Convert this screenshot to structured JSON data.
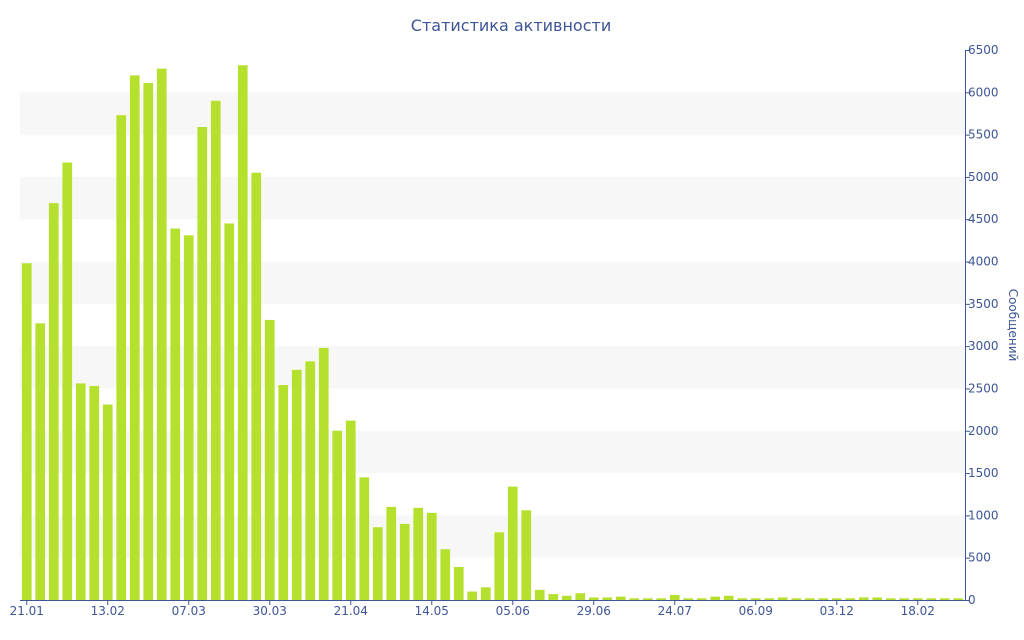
{
  "colors": {
    "bar": "#b5e12e",
    "text": "#3e5596",
    "axis": "#3e5596",
    "band": "#f7f7f7",
    "background": "#ffffff"
  },
  "chart_data": {
    "type": "bar",
    "title": "Статистика активности",
    "xlabel": "",
    "ylabel": "Сообщений",
    "y_axis_side": "right",
    "grid": "alternating-bands",
    "legend": "none",
    "ylim": [
      0,
      6500
    ],
    "yticks": [
      0,
      500,
      1000,
      1500,
      2000,
      2500,
      3000,
      3500,
      4000,
      4500,
      5000,
      5500,
      6000,
      6500
    ],
    "x_tick_labels": [
      {
        "label": "21.01",
        "index": 0
      },
      {
        "label": "13.02",
        "index": 6
      },
      {
        "label": "07.03",
        "index": 12
      },
      {
        "label": "30.03",
        "index": 18
      },
      {
        "label": "21.04",
        "index": 24
      },
      {
        "label": "14.05",
        "index": 30
      },
      {
        "label": "05.06",
        "index": 36
      },
      {
        "label": "29.06",
        "index": 42
      },
      {
        "label": "24.07",
        "index": 48
      },
      {
        "label": "06.09",
        "index": 54
      },
      {
        "label": "03.12",
        "index": 60
      },
      {
        "label": "18.02",
        "index": 66
      }
    ],
    "values": [
      3980,
      3270,
      4690,
      5170,
      2560,
      2530,
      2310,
      5730,
      6200,
      6110,
      6280,
      4390,
      4310,
      5590,
      5900,
      4450,
      6320,
      5050,
      3310,
      2540,
      2720,
      2820,
      2980,
      2000,
      2120,
      1450,
      860,
      1100,
      900,
      1090,
      1030,
      600,
      390,
      100,
      150,
      800,
      1340,
      1060,
      120,
      70,
      50,
      80,
      30,
      30,
      40,
      20,
      20,
      20,
      60,
      20,
      20,
      40,
      50,
      20,
      20,
      20,
      30,
      20,
      20,
      20,
      20,
      20,
      30,
      30,
      20,
      20,
      20,
      20,
      20,
      20
    ]
  }
}
